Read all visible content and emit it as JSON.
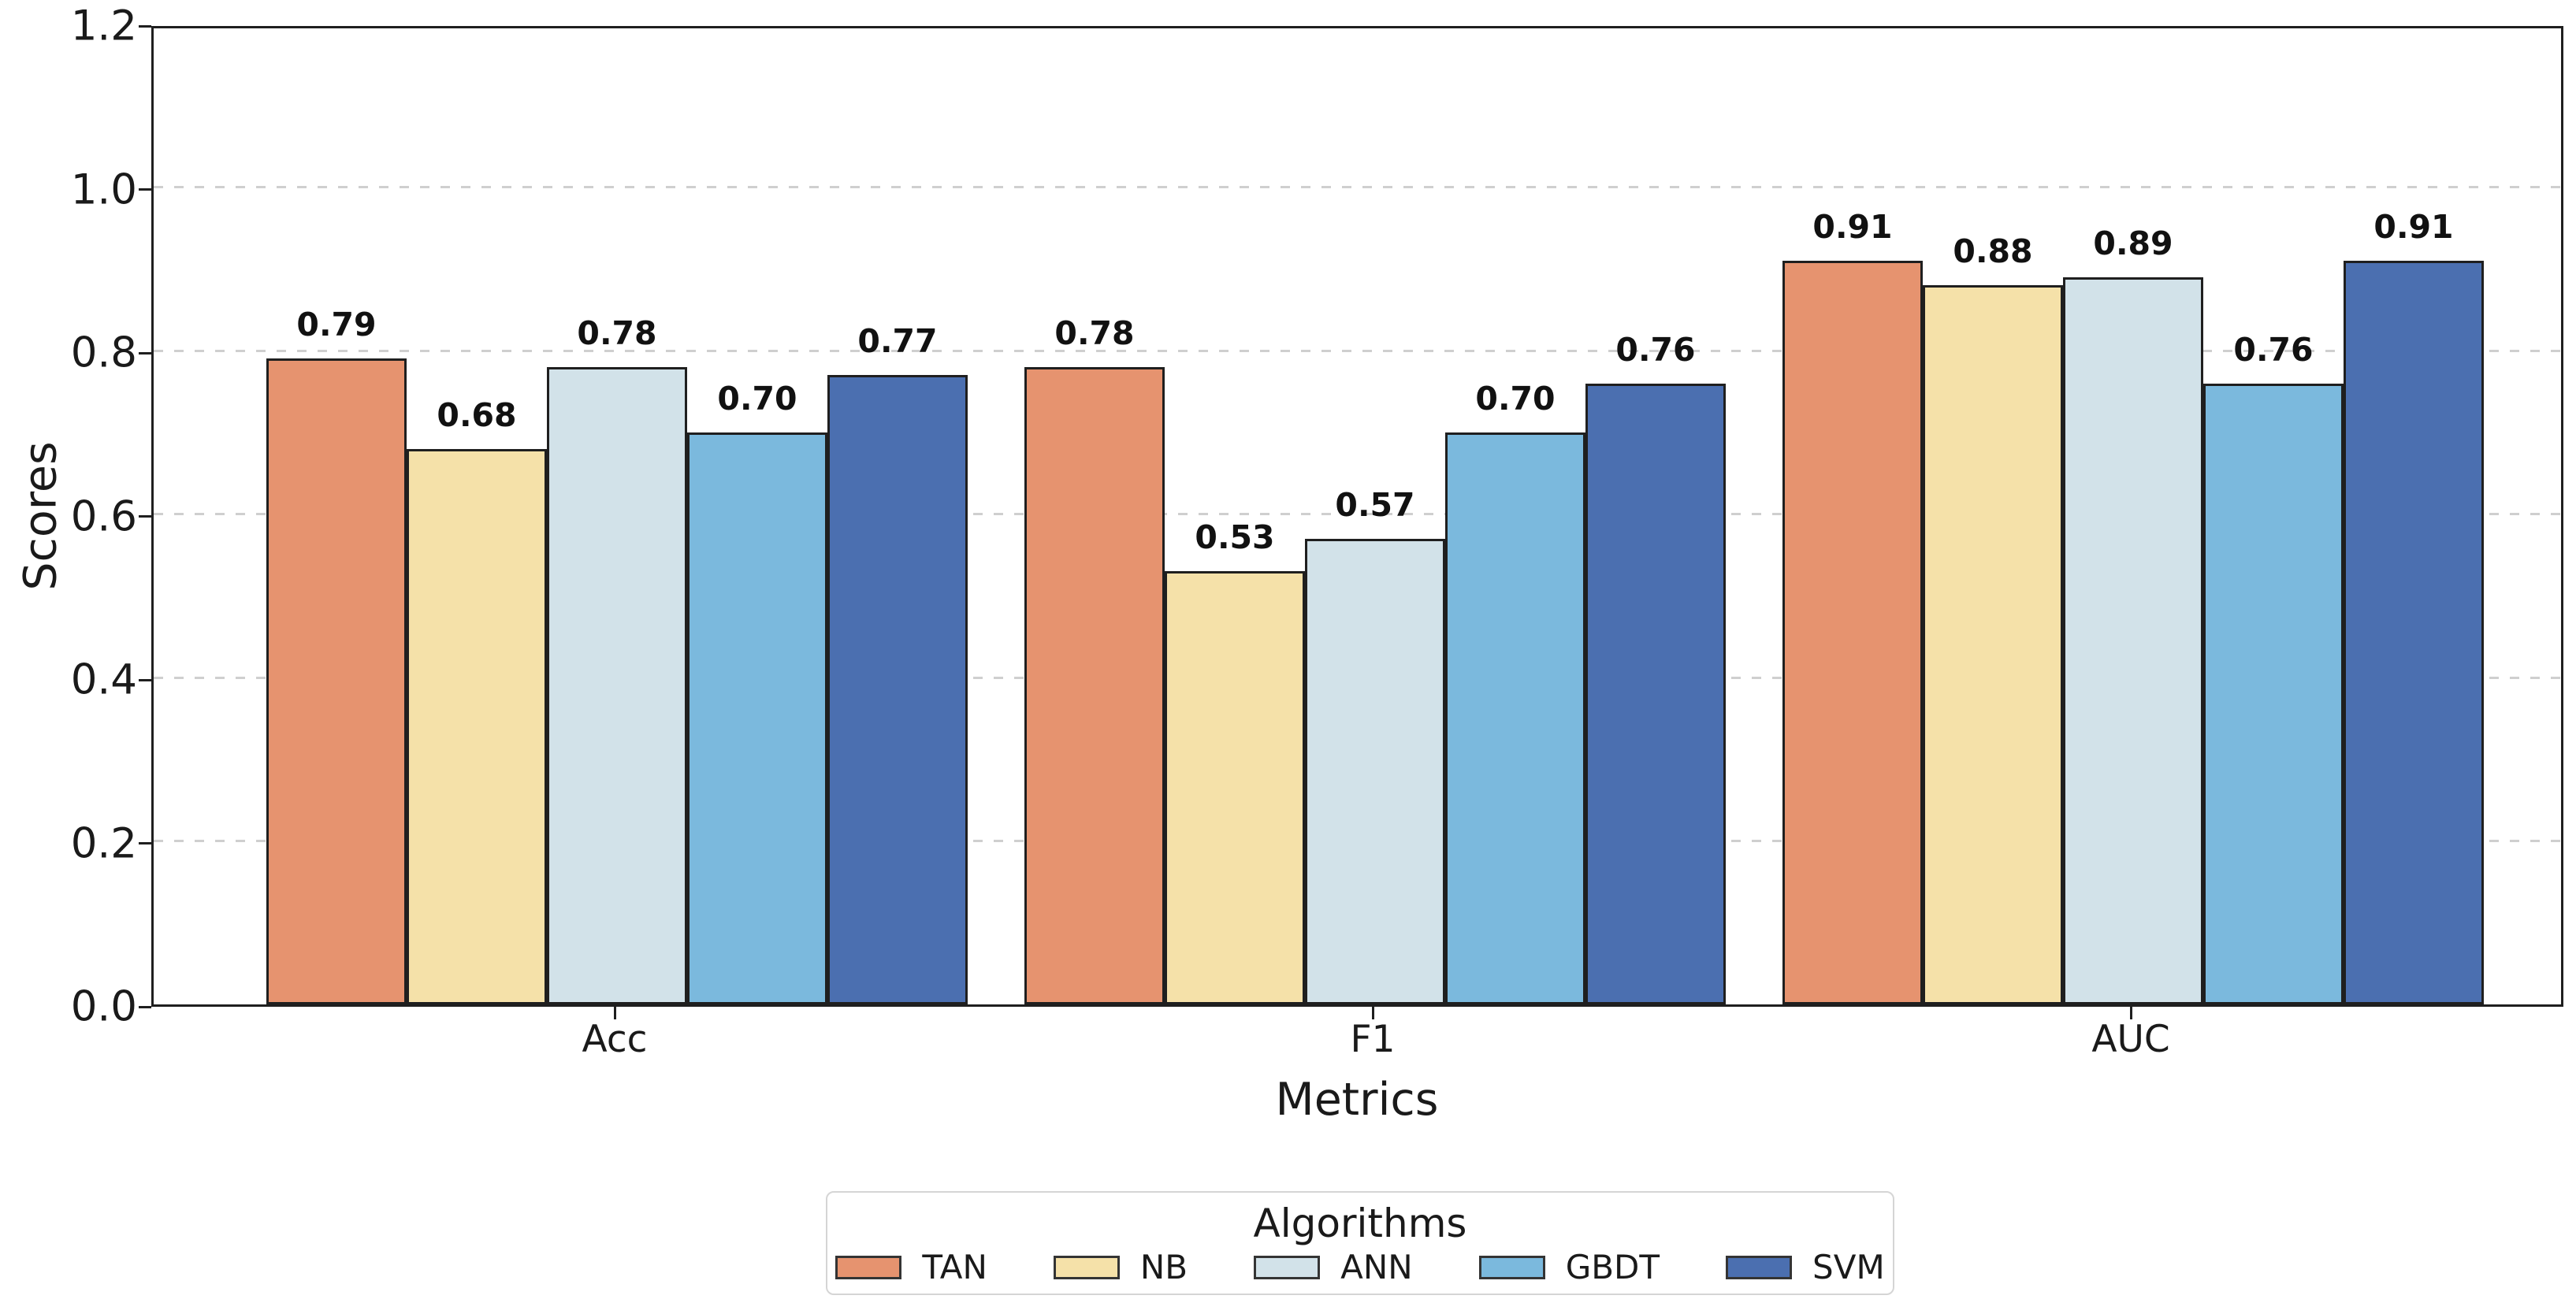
{
  "chart_data": {
    "type": "bar",
    "title": "",
    "xlabel": "Metrics",
    "ylabel": "Scores",
    "categories": [
      "Acc",
      "F1",
      "AUC"
    ],
    "series": [
      {
        "name": "TAN",
        "color": "#E6936F",
        "values": [
          0.79,
          0.78,
          0.91
        ]
      },
      {
        "name": "NB",
        "color": "#F5E1A9",
        "values": [
          0.68,
          0.53,
          0.88
        ]
      },
      {
        "name": "ANN",
        "color": "#D2E2E9",
        "values": [
          0.78,
          0.57,
          0.89
        ]
      },
      {
        "name": "GBDT",
        "color": "#7BB9DD",
        "values": [
          0.7,
          0.7,
          0.76
        ]
      },
      {
        "name": "SVM",
        "color": "#4B6FB0",
        "values": [
          0.77,
          0.76,
          0.91
        ]
      }
    ],
    "bar_value_labels": [
      [
        "0.79",
        "0.78",
        "0.91"
      ],
      [
        "0.68",
        "0.53",
        "0.88"
      ],
      [
        "0.78",
        "0.57",
        "0.89"
      ],
      [
        "0.70",
        "0.70",
        "0.76"
      ],
      [
        "0.77",
        "0.76",
        "0.91"
      ]
    ],
    "ylim": [
      0.0,
      1.2
    ],
    "yticks": [
      0.0,
      0.2,
      0.4,
      0.6,
      0.8,
      1.0,
      1.2
    ],
    "ytick_labels": [
      "0.0",
      "0.2",
      "0.4",
      "0.6",
      "0.8",
      "1.0",
      "1.2"
    ],
    "grid": "horizontal-dashed",
    "gridline_color": "#cfcfcf",
    "axis_color": "#1f1f1f",
    "bar_edge_color": "#1f1f1f",
    "legend_title": "Algorithms",
    "legend_position": "bottom-center"
  }
}
